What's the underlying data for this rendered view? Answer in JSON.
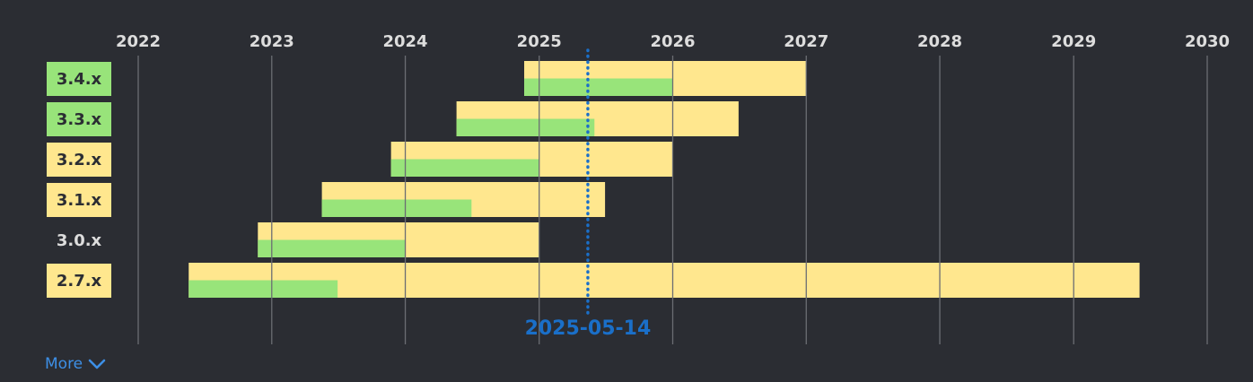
{
  "chart_data": {
    "type": "gantt",
    "x_axis": {
      "range": [
        "2022-01-01",
        "2030-01-01"
      ],
      "ticks": [
        "2022",
        "2023",
        "2024",
        "2025",
        "2026",
        "2027",
        "2028",
        "2029",
        "2030"
      ]
    },
    "today_marker": {
      "label": "2025-05-14",
      "date": "2025-05-14",
      "color": "#1a6fc9"
    },
    "rows": [
      {
        "label": "3.4.x",
        "label_bg": "#98e47a",
        "release": "2024-11-21",
        "normal_maintenance_end": "2026-01-01",
        "eol": "2027-01-01"
      },
      {
        "label": "3.3.x",
        "label_bg": "#98e47a",
        "release": "2024-05-20",
        "normal_maintenance_end": "2025-06-01",
        "eol": "2026-06-30"
      },
      {
        "label": "3.2.x",
        "label_bg": "#ffe78e",
        "release": "2023-11-23",
        "normal_maintenance_end": "2025-01-01",
        "eol": "2026-01-01"
      },
      {
        "label": "3.1.x",
        "label_bg": "#ffe78e",
        "release": "2023-05-18",
        "normal_maintenance_end": "2024-06-30",
        "eol": "2025-06-30"
      },
      {
        "label": "3.0.x",
        "label_bg": "",
        "release": "2022-11-24",
        "normal_maintenance_end": "2024-01-01",
        "eol": "2025-01-01"
      },
      {
        "label": "2.7.x",
        "label_bg": "#ffe78e",
        "release": "2022-05-19",
        "normal_maintenance_end": "2023-06-30",
        "eol": "2029-06-30"
      }
    ],
    "colors": {
      "background": "#2b2d33",
      "gridline": "#6b6d73",
      "tick_text": "#dddddd",
      "label_text_on_bg": "#2b2d33",
      "label_text_plain": "#dddddd",
      "extended_support": "#ffe78e",
      "normal_support": "#98e47a"
    }
  },
  "footer": {
    "more_label": "More",
    "more_icon": "chevron-down-icon",
    "link_color": "#3d8fe6"
  }
}
